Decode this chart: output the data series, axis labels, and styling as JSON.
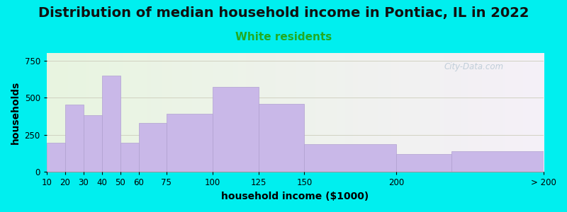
{
  "title": "Distribution of median household income in Pontiac, IL in 2022",
  "subtitle": "White residents",
  "xlabel": "household income ($1000)",
  "ylabel": "households",
  "bar_color": "#c9b8e8",
  "bar_edgecolor": "#b0a0d0",
  "background_color": "#00efef",
  "plot_bg_left": "#e8f5e0",
  "plot_bg_right": "#f5f0f8",
  "bin_edges": [
    10,
    20,
    30,
    40,
    50,
    60,
    75,
    100,
    125,
    150,
    200,
    230,
    280
  ],
  "tick_positions": [
    10,
    20,
    30,
    40,
    50,
    60,
    75,
    100,
    125,
    150,
    200,
    280
  ],
  "tick_labels": [
    "10",
    "20",
    "30",
    "40",
    "50",
    "60",
    "75",
    "100",
    "125",
    "150",
    "200",
    "> 200"
  ],
  "values": [
    195,
    455,
    380,
    650,
    195,
    330,
    390,
    570,
    460,
    185,
    120,
    140
  ],
  "ylim": [
    0,
    800
  ],
  "yticks": [
    0,
    250,
    500,
    750
  ],
  "title_fontsize": 14,
  "subtitle_fontsize": 11,
  "subtitle_color": "#22aa22",
  "axis_label_fontsize": 10,
  "tick_fontsize": 8.5,
  "watermark_text": "City-Data.com",
  "watermark_color": "#b8c8d4"
}
